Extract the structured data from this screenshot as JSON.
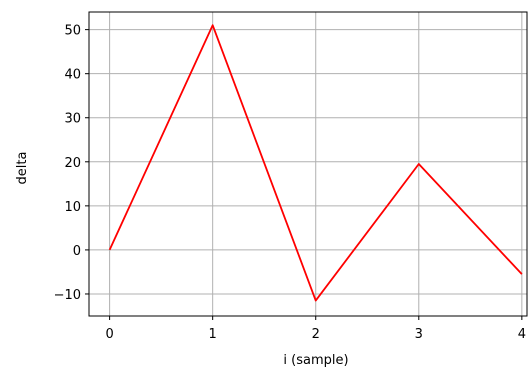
{
  "chart_data": {
    "type": "line",
    "x": [
      0,
      1,
      2,
      3,
      4
    ],
    "series": [
      {
        "values": [
          0,
          51,
          -11.5,
          19.5,
          -5.5
        ],
        "color": "#ff0000"
      }
    ],
    "xlabel": "i (sample)",
    "ylabel": "delta",
    "xlim": [
      -0.2,
      4.05
    ],
    "ylim": [
      -15,
      54
    ],
    "xticks": [
      0,
      1,
      2,
      3,
      4
    ],
    "yticks": [
      -10,
      0,
      10,
      20,
      30,
      40,
      50
    ],
    "xtick_labels": [
      "0",
      "1",
      "2",
      "3",
      "4"
    ],
    "ytick_labels": [
      "−10",
      "0",
      "10",
      "20",
      "30",
      "40",
      "50"
    ],
    "grid": true
  }
}
